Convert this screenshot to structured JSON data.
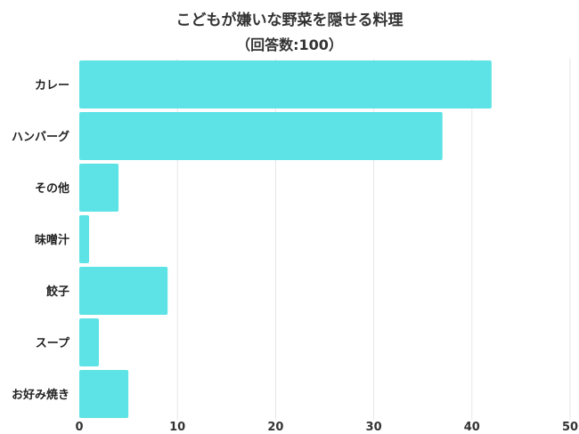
{
  "chart_data": {
    "type": "bar",
    "orientation": "horizontal",
    "title": "こどもが嫌いな野菜を隠せる料理",
    "subtitle": "（回答数:100）",
    "categories": [
      "カレー",
      "ハンバーグ",
      "その他",
      "味噌汁",
      "餃子",
      "スープ",
      "お好み焼き"
    ],
    "values": [
      42,
      37,
      4,
      1,
      9,
      2,
      5
    ],
    "xlim": [
      0,
      50
    ],
    "xticks": [
      "0",
      "10",
      "20",
      "30",
      "40",
      "50"
    ],
    "grid": true,
    "bar_color": "#5de3e6"
  }
}
